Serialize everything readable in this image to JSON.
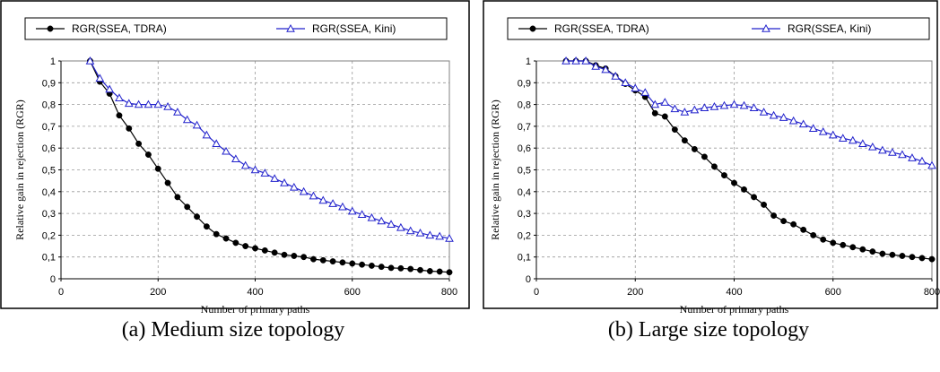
{
  "chart_data": [
    {
      "type": "line",
      "caption": "(a) Medium size topology",
      "xlabel": "Number of primary paths",
      "ylabel": "Relative gain in rejection (RGR)",
      "xlim": [
        0,
        800
      ],
      "ylim": [
        0,
        1
      ],
      "x_ticks": [
        "0",
        "200",
        "400",
        "600",
        "800"
      ],
      "y_ticks": [
        "0",
        "0,1",
        "0,2",
        "0,3",
        "0,4",
        "0,5",
        "0,6",
        "0,7",
        "0,8",
        "0,9",
        "1"
      ],
      "grid": "dashed",
      "legend": "top",
      "x": [
        60,
        80,
        100,
        120,
        140,
        160,
        180,
        200,
        220,
        240,
        260,
        280,
        300,
        320,
        340,
        360,
        380,
        400,
        420,
        440,
        460,
        480,
        500,
        520,
        540,
        560,
        580,
        600,
        620,
        640,
        660,
        680,
        700,
        720,
        740,
        760,
        780,
        800
      ],
      "series": [
        {
          "name": "RGR(SSEA, TDRA)",
          "color": "#000000",
          "marker": "circle",
          "values": [
            1.0,
            0.905,
            0.85,
            0.75,
            0.69,
            0.62,
            0.57,
            0.505,
            0.44,
            0.375,
            0.33,
            0.285,
            0.24,
            0.205,
            0.185,
            0.165,
            0.15,
            0.14,
            0.13,
            0.12,
            0.11,
            0.105,
            0.1,
            0.09,
            0.085,
            0.08,
            0.075,
            0.07,
            0.065,
            0.06,
            0.055,
            0.05,
            0.048,
            0.045,
            0.04,
            0.035,
            0.033,
            0.03
          ]
        },
        {
          "name": "RGR(SSEA, Kini)",
          "color": "#2222cc",
          "marker": "triangle",
          "values": [
            1.0,
            0.92,
            0.87,
            0.83,
            0.805,
            0.8,
            0.8,
            0.8,
            0.79,
            0.765,
            0.73,
            0.705,
            0.66,
            0.62,
            0.585,
            0.55,
            0.52,
            0.5,
            0.485,
            0.46,
            0.44,
            0.42,
            0.4,
            0.38,
            0.36,
            0.345,
            0.33,
            0.31,
            0.295,
            0.28,
            0.265,
            0.25,
            0.235,
            0.22,
            0.21,
            0.2,
            0.195,
            0.185
          ]
        }
      ]
    },
    {
      "type": "line",
      "caption": "(b) Large size topology",
      "xlabel": "Number of primary paths",
      "ylabel": "Relative gain in rejection (RGR)",
      "xlim": [
        0,
        800
      ],
      "ylim": [
        0,
        1
      ],
      "x_ticks": [
        "0",
        "200",
        "400",
        "600",
        "800"
      ],
      "y_ticks": [
        "0",
        "0,1",
        "0,2",
        "0,3",
        "0,4",
        "0,5",
        "0,6",
        "0,7",
        "0,8",
        "0,9",
        "1"
      ],
      "grid": "dashed",
      "legend": "top",
      "x": [
        60,
        80,
        100,
        120,
        140,
        160,
        180,
        200,
        220,
        240,
        260,
        280,
        300,
        320,
        340,
        360,
        380,
        400,
        420,
        440,
        460,
        480,
        500,
        520,
        540,
        560,
        580,
        600,
        620,
        640,
        660,
        680,
        700,
        720,
        740,
        760,
        780,
        800
      ],
      "series": [
        {
          "name": "RGR(SSEA, TDRA)",
          "color": "#000000",
          "marker": "circle",
          "values": [
            1.0,
            1.0,
            1.0,
            0.98,
            0.965,
            0.93,
            0.895,
            0.865,
            0.835,
            0.76,
            0.745,
            0.685,
            0.635,
            0.595,
            0.56,
            0.515,
            0.475,
            0.44,
            0.41,
            0.375,
            0.34,
            0.29,
            0.265,
            0.25,
            0.225,
            0.2,
            0.18,
            0.165,
            0.155,
            0.145,
            0.135,
            0.125,
            0.115,
            0.11,
            0.105,
            0.1,
            0.095,
            0.09
          ]
        },
        {
          "name": "RGR(SSEA, Kini)",
          "color": "#2222cc",
          "marker": "triangle",
          "values": [
            1.0,
            1.0,
            1.0,
            0.975,
            0.96,
            0.93,
            0.9,
            0.875,
            0.855,
            0.8,
            0.81,
            0.78,
            0.765,
            0.775,
            0.785,
            0.79,
            0.795,
            0.8,
            0.795,
            0.785,
            0.765,
            0.75,
            0.74,
            0.725,
            0.71,
            0.69,
            0.675,
            0.66,
            0.645,
            0.635,
            0.62,
            0.605,
            0.59,
            0.58,
            0.57,
            0.555,
            0.54,
            0.52
          ]
        }
      ]
    }
  ]
}
